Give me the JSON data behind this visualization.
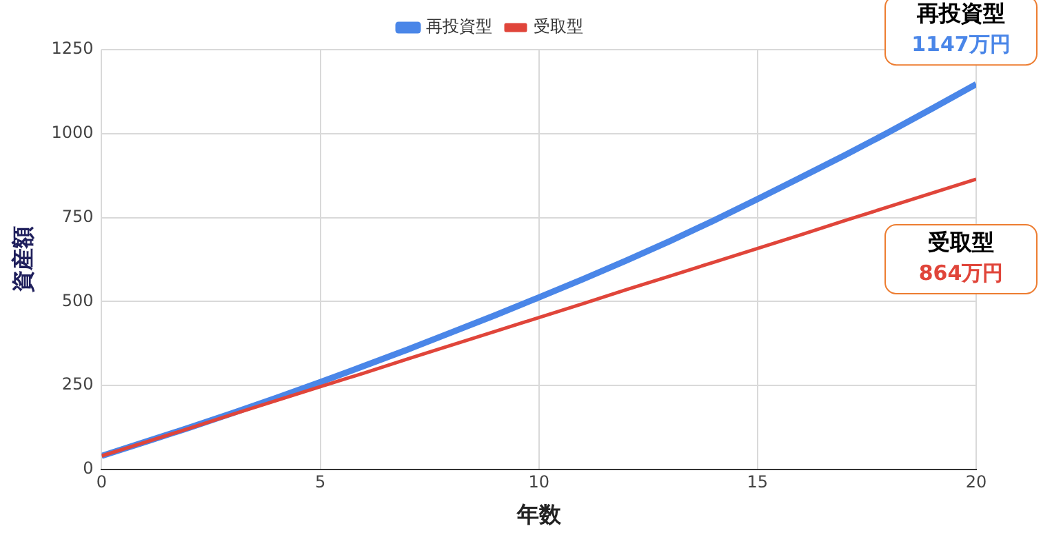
{
  "chart_data": {
    "type": "line",
    "xlabel": "年数",
    "ylabel": "資産額",
    "x": [
      0,
      1,
      2,
      3,
      4,
      5,
      6,
      7,
      8,
      9,
      10,
      11,
      12,
      13,
      14,
      15,
      16,
      17,
      18,
      19,
      20
    ],
    "series": [
      {
        "name": "再投資型",
        "color": "#4a86e8",
        "values": [
          40,
          82,
          124,
          168,
          213,
          260,
          308,
          357,
          408,
          459,
          512,
          566,
          622,
          680,
          741,
          805,
          870,
          936,
          1004,
          1075,
          1147
        ]
      },
      {
        "name": "受取型",
        "color": "#e0453a",
        "values": [
          40,
          81,
          122,
          164,
          205,
          246,
          287,
          329,
          370,
          411,
          452,
          493,
          535,
          576,
          617,
          658,
          699,
          741,
          782,
          823,
          864
        ]
      }
    ],
    "xlim": [
      0,
      20
    ],
    "xticks": [
      0,
      5,
      10,
      15,
      20
    ],
    "ylim": [
      0,
      1250
    ],
    "yticks": [
      0,
      250,
      500,
      750,
      1000,
      1250
    ],
    "grid": true,
    "legend": "top",
    "marker": "none",
    "line_style": "solid",
    "annotations": [
      {
        "text": "再投資型\n1147万円",
        "x": 20,
        "y": 1147
      },
      {
        "text": "受取型\n864万円",
        "x": 20,
        "y": 864
      }
    ]
  }
}
